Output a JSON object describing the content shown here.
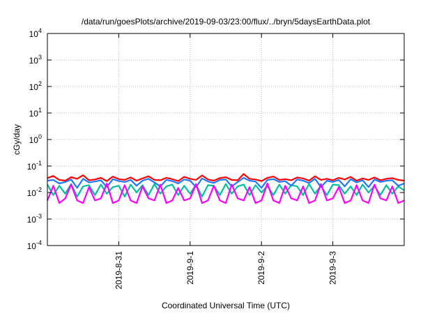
{
  "chart_data": {
    "type": "line",
    "title": "/data/run/goesPlots/archive/2019-09-03/23:00/flux/../bryn/5daysEarthData.plot",
    "xlabel": "Coordinated Universal Time (UTC)",
    "ylabel": "cGy/day",
    "yscale": "log",
    "ylim_exp": [
      -4,
      4
    ],
    "ytick_exponents": [
      -4,
      -3,
      -2,
      -1,
      0,
      1,
      2,
      3,
      4
    ],
    "xlim_days": [
      0,
      5
    ],
    "x_origin": "2019-8-30",
    "xticks": [
      {
        "day": 1,
        "label": "2019-8-31"
      },
      {
        "day": 2,
        "label": "2019-9-1"
      },
      {
        "day": 3,
        "label": "2019-9-2"
      },
      {
        "day": 4,
        "label": "2019-9-3"
      }
    ],
    "grid": true,
    "sample_interval_hours": 2,
    "series": [
      {
        "name": "red",
        "color": "#ff0000",
        "values": [
          0.035,
          0.042,
          0.03,
          0.028,
          0.038,
          0.033,
          0.045,
          0.029,
          0.031,
          0.036,
          0.027,
          0.04,
          0.032,
          0.03,
          0.037,
          0.028,
          0.034,
          0.041,
          0.03,
          0.029,
          0.036,
          0.032,
          0.027,
          0.039,
          0.033,
          0.03,
          0.044,
          0.031,
          0.028,
          0.035,
          0.038,
          0.03,
          0.029,
          0.05,
          0.033,
          0.031,
          0.027,
          0.036,
          0.04,
          0.03,
          0.032,
          0.029,
          0.037,
          0.034,
          0.028,
          0.041,
          0.03,
          0.033,
          0.029,
          0.036,
          0.031,
          0.039,
          0.028,
          0.034,
          0.03,
          0.037,
          0.029,
          0.033,
          0.035,
          0.03,
          0.028
        ]
      },
      {
        "name": "teal",
        "color": "#00c0a0",
        "values": [
          0.02,
          0.008,
          0.018,
          0.009,
          0.021,
          0.007,
          0.017,
          0.019,
          0.008,
          0.02,
          0.009,
          0.016,
          0.018,
          0.007,
          0.02,
          0.01,
          0.019,
          0.008,
          0.021,
          0.009,
          0.017,
          0.02,
          0.008,
          0.018,
          0.009,
          0.02,
          0.007,
          0.019,
          0.018,
          0.008,
          0.021,
          0.009,
          0.017,
          0.02,
          0.008,
          0.019,
          0.01,
          0.018,
          0.008,
          0.02,
          0.009,
          0.019,
          0.017,
          0.008,
          0.021,
          0.009,
          0.018,
          0.008,
          0.02,
          0.019,
          0.009,
          0.017,
          0.008,
          0.02,
          0.01,
          0.018,
          0.008,
          0.019,
          0.009,
          0.017,
          0.012
        ]
      },
      {
        "name": "blue",
        "color": "#1e78ff",
        "values": [
          0.028,
          0.03,
          0.022,
          0.025,
          0.031,
          0.015,
          0.033,
          0.024,
          0.026,
          0.029,
          0.016,
          0.032,
          0.027,
          0.025,
          0.03,
          0.018,
          0.028,
          0.033,
          0.024,
          0.017,
          0.03,
          0.027,
          0.022,
          0.031,
          0.028,
          0.016,
          0.034,
          0.026,
          0.023,
          0.03,
          0.031,
          0.017,
          0.025,
          0.036,
          0.028,
          0.026,
          0.015,
          0.03,
          0.032,
          0.025,
          0.027,
          0.018,
          0.031,
          0.028,
          0.023,
          0.033,
          0.016,
          0.028,
          0.025,
          0.03,
          0.017,
          0.032,
          0.024,
          0.029,
          0.016,
          0.031,
          0.025,
          0.028,
          0.029,
          0.018,
          0.022
        ]
      },
      {
        "name": "magenta",
        "color": "#ff00ff",
        "values": [
          0.005,
          0.018,
          0.004,
          0.006,
          0.02,
          0.005,
          0.004,
          0.016,
          0.005,
          0.006,
          0.022,
          0.004,
          0.005,
          0.019,
          0.005,
          0.004,
          0.017,
          0.006,
          0.005,
          0.02,
          0.004,
          0.005,
          0.015,
          0.005,
          0.006,
          0.021,
          0.004,
          0.005,
          0.018,
          0.005,
          0.004,
          0.02,
          0.006,
          0.005,
          0.016,
          0.004,
          0.005,
          0.022,
          0.005,
          0.004,
          0.018,
          0.006,
          0.005,
          0.017,
          0.004,
          0.005,
          0.021,
          0.005,
          0.006,
          0.016,
          0.004,
          0.005,
          0.019,
          0.005,
          0.004,
          0.02,
          0.006,
          0.005,
          0.017,
          0.004,
          0.005
        ]
      }
    ]
  }
}
